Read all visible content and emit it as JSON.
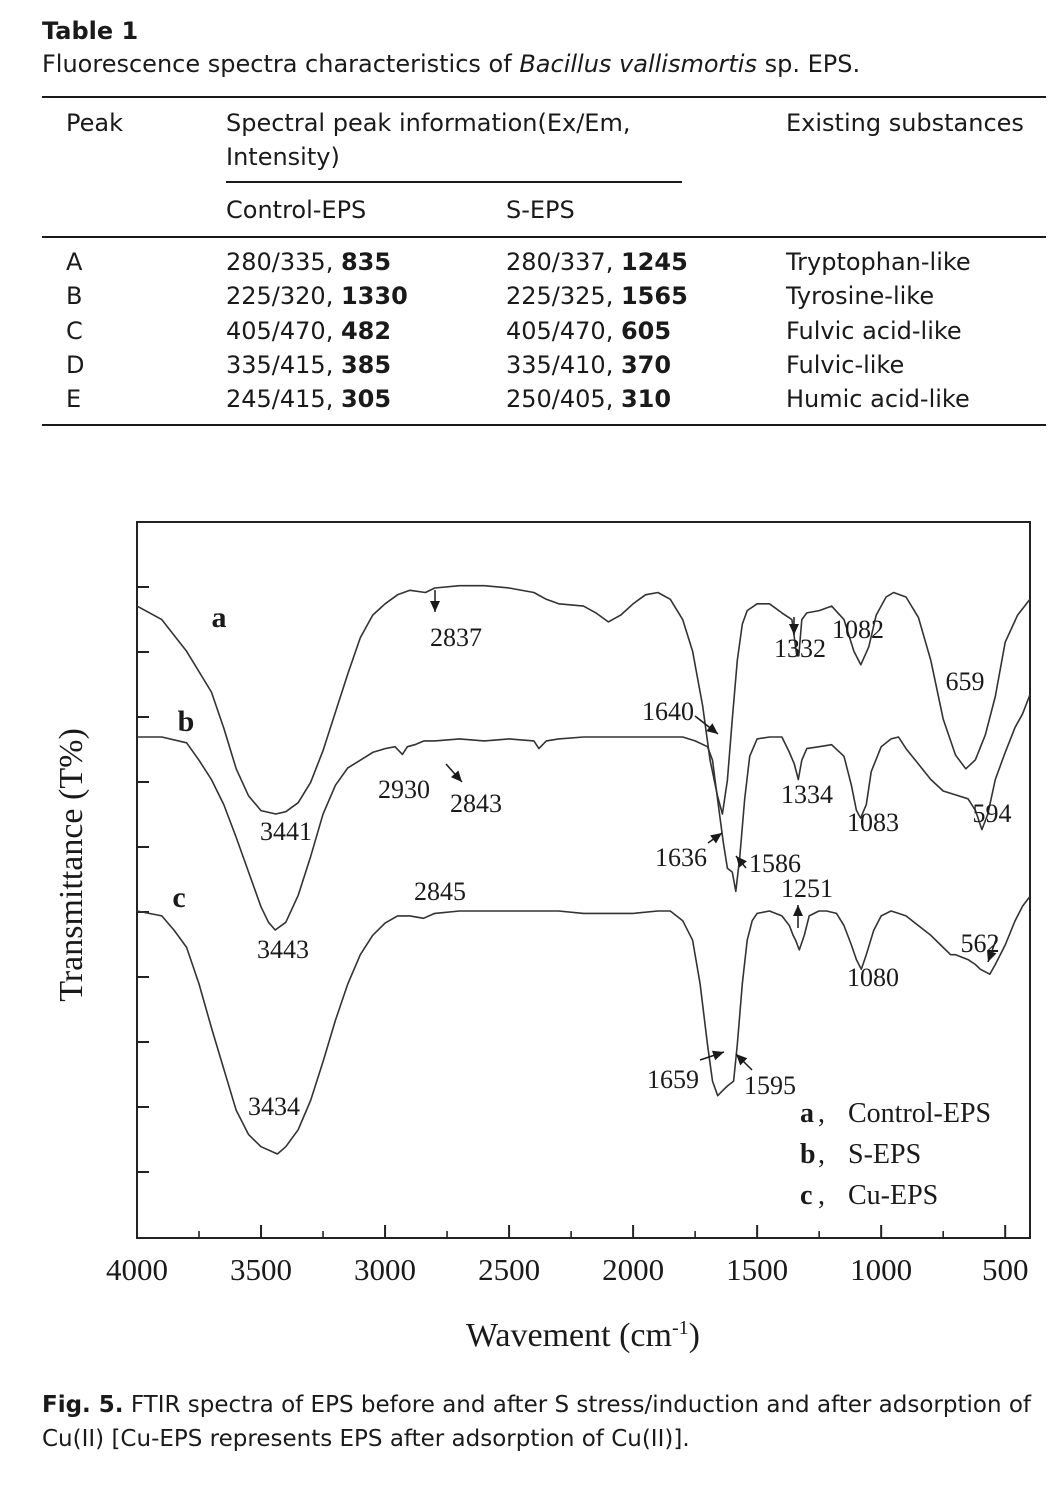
{
  "table": {
    "label": "Table 1",
    "caption_prefix": "Fluorescence spectra characteristics of ",
    "caption_italic": "Bacillus vallismortis",
    "caption_suffix": " sp. EPS.",
    "headers": {
      "peak": "Peak",
      "spectral_line1": "Spectral peak information(Ex/Em,",
      "spectral_line2": "Intensity)",
      "substances": "Existing substances",
      "control": "Control-EPS",
      "s": "S-EPS"
    },
    "rows": [
      {
        "peak": "A",
        "control_pos": "280/335, ",
        "control_int": "835",
        "s_pos": "280/337, ",
        "s_int": "1245",
        "substance": "Tryptophan-like"
      },
      {
        "peak": "B",
        "control_pos": "225/320, ",
        "control_int": "1330",
        "s_pos": "225/325, ",
        "s_int": "1565",
        "substance": "Tyrosine-like"
      },
      {
        "peak": "C",
        "control_pos": "405/470, ",
        "control_int": "482",
        "s_pos": "405/470, ",
        "s_int": "605",
        "substance": "Fulvic acid-like"
      },
      {
        "peak": "D",
        "control_pos": "335/415, ",
        "control_int": "385",
        "s_pos": "335/410, ",
        "s_int": "370",
        "substance": "Fulvic-like"
      },
      {
        "peak": "E",
        "control_pos": "245/415, ",
        "control_int": "305",
        "s_pos": "250/405, ",
        "s_int": "310",
        "substance": "Humic acid-like"
      }
    ]
  },
  "figure": {
    "caption_label": "Fig. 5.",
    "caption_text": " FTIR spectra of EPS before and after S stress/induction and after adsorption of Cu(II) [Cu-EPS represents EPS after adsorption of Cu(II)].",
    "line_color": "#333333"
  },
  "chart_data": {
    "type": "line",
    "xlabel": "Wavement (cm",
    "xlabel_sup": "-1",
    "xlabel_close": ")",
    "ylabel": "Transmittance (T%)",
    "xlim": [
      4000,
      400
    ],
    "xticks": [
      "4000",
      "3500",
      "3000",
      "2500",
      "2000",
      "1500",
      "1000",
      "500"
    ],
    "legend": {
      "position": "bottom-right",
      "entries": [
        {
          "key": "a",
          "sep": ",",
          "name": "Control-EPS"
        },
        {
          "key": "b",
          "sep": ",",
          "name": "S-EPS"
        },
        {
          "key": "c",
          "sep": ",",
          "name": "Cu-EPS"
        }
      ]
    },
    "series": [
      {
        "key": "a",
        "points": [
          [
            4000,
            0.08
          ],
          [
            3900,
            0.14
          ],
          [
            3800,
            0.28
          ],
          [
            3700,
            0.46
          ],
          [
            3650,
            0.62
          ],
          [
            3600,
            0.8
          ],
          [
            3550,
            0.92
          ],
          [
            3500,
            0.985
          ],
          [
            3441,
            1.0
          ],
          [
            3400,
            0.99
          ],
          [
            3350,
            0.95
          ],
          [
            3300,
            0.86
          ],
          [
            3250,
            0.72
          ],
          [
            3200,
            0.55
          ],
          [
            3150,
            0.38
          ],
          [
            3100,
            0.22
          ],
          [
            3050,
            0.12
          ],
          [
            3000,
            0.07
          ],
          [
            2950,
            0.03
          ],
          [
            2900,
            0.01
          ],
          [
            2837,
            0.02
          ],
          [
            2800,
            0.0
          ],
          [
            2700,
            -0.01
          ],
          [
            2600,
            -0.01
          ],
          [
            2500,
            0.0
          ],
          [
            2400,
            0.02
          ],
          [
            2350,
            0.05
          ],
          [
            2300,
            0.07
          ],
          [
            2200,
            0.08
          ],
          [
            2150,
            0.11
          ],
          [
            2100,
            0.15
          ],
          [
            2050,
            0.12
          ],
          [
            2000,
            0.07
          ],
          [
            1950,
            0.03
          ],
          [
            1900,
            0.02
          ],
          [
            1850,
            0.05
          ],
          [
            1800,
            0.14
          ],
          [
            1760,
            0.28
          ],
          [
            1720,
            0.52
          ],
          [
            1690,
            0.76
          ],
          [
            1660,
            0.92
          ],
          [
            1640,
            1.0
          ],
          [
            1620,
            0.85
          ],
          [
            1600,
            0.58
          ],
          [
            1580,
            0.32
          ],
          [
            1560,
            0.16
          ],
          [
            1540,
            0.1
          ],
          [
            1500,
            0.07
          ],
          [
            1450,
            0.07
          ],
          [
            1400,
            0.11
          ],
          [
            1360,
            0.14
          ],
          [
            1340,
            0.3
          ],
          [
            1332,
            0.3
          ],
          [
            1320,
            0.14
          ],
          [
            1300,
            0.11
          ],
          [
            1250,
            0.1
          ],
          [
            1200,
            0.08
          ],
          [
            1150,
            0.14
          ],
          [
            1110,
            0.28
          ],
          [
            1082,
            0.34
          ],
          [
            1050,
            0.26
          ],
          [
            1020,
            0.12
          ],
          [
            980,
            0.04
          ],
          [
            950,
            0.02
          ],
          [
            900,
            0.04
          ],
          [
            850,
            0.13
          ],
          [
            800,
            0.32
          ],
          [
            750,
            0.58
          ],
          [
            700,
            0.74
          ],
          [
            659,
            0.8
          ],
          [
            620,
            0.76
          ],
          [
            580,
            0.65
          ],
          [
            540,
            0.48
          ],
          [
            500,
            0.24
          ],
          [
            450,
            0.12
          ],
          [
            400,
            0.05
          ]
        ]
      },
      {
        "key": "b",
        "points": [
          [
            4000,
            0.0
          ],
          [
            3900,
            0.0
          ],
          [
            3800,
            0.03
          ],
          [
            3750,
            0.12
          ],
          [
            3700,
            0.22
          ],
          [
            3650,
            0.35
          ],
          [
            3600,
            0.52
          ],
          [
            3550,
            0.7
          ],
          [
            3500,
            0.88
          ],
          [
            3470,
            0.96
          ],
          [
            3443,
            1.0
          ],
          [
            3400,
            0.96
          ],
          [
            3350,
            0.82
          ],
          [
            3300,
            0.62
          ],
          [
            3250,
            0.4
          ],
          [
            3200,
            0.25
          ],
          [
            3150,
            0.16
          ],
          [
            3100,
            0.12
          ],
          [
            3050,
            0.08
          ],
          [
            3000,
            0.06
          ],
          [
            2960,
            0.05
          ],
          [
            2930,
            0.09
          ],
          [
            2910,
            0.05
          ],
          [
            2880,
            0.04
          ],
          [
            2843,
            0.02
          ],
          [
            2800,
            0.02
          ],
          [
            2700,
            0.01
          ],
          [
            2600,
            0.02
          ],
          [
            2500,
            0.01
          ],
          [
            2400,
            0.02
          ],
          [
            2380,
            0.06
          ],
          [
            2350,
            0.02
          ],
          [
            2300,
            0.01
          ],
          [
            2200,
            0.0
          ],
          [
            2100,
            0.0
          ],
          [
            2000,
            0.0
          ],
          [
            1900,
            0.0
          ],
          [
            1800,
            0.0
          ],
          [
            1750,
            0.02
          ],
          [
            1700,
            0.05
          ],
          [
            1680,
            0.12
          ],
          [
            1660,
            0.32
          ],
          [
            1636,
            0.55
          ],
          [
            1620,
            0.68
          ],
          [
            1600,
            0.7
          ],
          [
            1586,
            0.8
          ],
          [
            1570,
            0.62
          ],
          [
            1550,
            0.32
          ],
          [
            1530,
            0.1
          ],
          [
            1500,
            0.01
          ],
          [
            1450,
            0.0
          ],
          [
            1400,
            0.0
          ],
          [
            1370,
            0.08
          ],
          [
            1350,
            0.14
          ],
          [
            1334,
            0.22
          ],
          [
            1320,
            0.12
          ],
          [
            1300,
            0.06
          ],
          [
            1250,
            0.05
          ],
          [
            1200,
            0.04
          ],
          [
            1150,
            0.1
          ],
          [
            1120,
            0.25
          ],
          [
            1100,
            0.38
          ],
          [
            1083,
            0.42
          ],
          [
            1060,
            0.35
          ],
          [
            1040,
            0.18
          ],
          [
            1000,
            0.05
          ],
          [
            960,
            0.01
          ],
          [
            930,
            0.0
          ],
          [
            900,
            0.06
          ],
          [
            850,
            0.14
          ],
          [
            800,
            0.22
          ],
          [
            750,
            0.28
          ],
          [
            700,
            0.3
          ],
          [
            650,
            0.32
          ],
          [
            620,
            0.38
          ],
          [
            594,
            0.48
          ],
          [
            570,
            0.4
          ],
          [
            540,
            0.22
          ],
          [
            500,
            0.08
          ],
          [
            460,
            -0.05
          ],
          [
            430,
            -0.12
          ],
          [
            400,
            -0.22
          ]
        ]
      },
      {
        "key": "c",
        "points": [
          [
            4000,
            0.0
          ],
          [
            3900,
            0.02
          ],
          [
            3850,
            0.08
          ],
          [
            3800,
            0.15
          ],
          [
            3750,
            0.3
          ],
          [
            3700,
            0.48
          ],
          [
            3650,
            0.65
          ],
          [
            3600,
            0.82
          ],
          [
            3550,
            0.92
          ],
          [
            3500,
            0.97
          ],
          [
            3434,
            1.0
          ],
          [
            3400,
            0.97
          ],
          [
            3350,
            0.9
          ],
          [
            3300,
            0.78
          ],
          [
            3250,
            0.62
          ],
          [
            3200,
            0.45
          ],
          [
            3150,
            0.3
          ],
          [
            3100,
            0.18
          ],
          [
            3050,
            0.1
          ],
          [
            3000,
            0.05
          ],
          [
            2950,
            0.02
          ],
          [
            2900,
            0.02
          ],
          [
            2845,
            0.03
          ],
          [
            2800,
            0.01
          ],
          [
            2700,
            0.0
          ],
          [
            2600,
            0.0
          ],
          [
            2500,
            0.0
          ],
          [
            2400,
            0.0
          ],
          [
            2300,
            0.0
          ],
          [
            2200,
            0.01
          ],
          [
            2100,
            0.01
          ],
          [
            2000,
            0.01
          ],
          [
            1900,
            0.0
          ],
          [
            1850,
            0.0
          ],
          [
            1800,
            0.04
          ],
          [
            1760,
            0.12
          ],
          [
            1730,
            0.3
          ],
          [
            1700,
            0.55
          ],
          [
            1680,
            0.7
          ],
          [
            1659,
            0.76
          ],
          [
            1640,
            0.74
          ],
          [
            1620,
            0.72
          ],
          [
            1595,
            0.7
          ],
          [
            1580,
            0.55
          ],
          [
            1560,
            0.3
          ],
          [
            1540,
            0.12
          ],
          [
            1520,
            0.04
          ],
          [
            1500,
            0.01
          ],
          [
            1450,
            0.0
          ],
          [
            1400,
            0.02
          ],
          [
            1370,
            0.06
          ],
          [
            1355,
            0.1
          ],
          [
            1345,
            0.12
          ],
          [
            1330,
            0.16
          ],
          [
            1310,
            0.1
          ],
          [
            1290,
            0.02
          ],
          [
            1251,
            0.0
          ],
          [
            1220,
            0.0
          ],
          [
            1180,
            0.01
          ],
          [
            1150,
            0.06
          ],
          [
            1120,
            0.14
          ],
          [
            1100,
            0.2
          ],
          [
            1080,
            0.24
          ],
          [
            1060,
            0.18
          ],
          [
            1030,
            0.08
          ],
          [
            1000,
            0.02
          ],
          [
            960,
            0.0
          ],
          [
            930,
            0.01
          ],
          [
            900,
            0.02
          ],
          [
            850,
            0.06
          ],
          [
            800,
            0.1
          ],
          [
            760,
            0.14
          ],
          [
            720,
            0.18
          ],
          [
            700,
            0.18
          ],
          [
            650,
            0.2
          ],
          [
            620,
            0.22
          ],
          [
            600,
            0.24
          ],
          [
            562,
            0.26
          ],
          [
            540,
            0.22
          ],
          [
            500,
            0.14
          ],
          [
            460,
            0.04
          ],
          [
            430,
            -0.02
          ],
          [
            400,
            -0.06
          ]
        ]
      }
    ],
    "curve_labels": [
      {
        "key": "a",
        "text": "a"
      },
      {
        "key": "b",
        "text": "b"
      },
      {
        "key": "c",
        "text": "c"
      }
    ],
    "annotations": [
      {
        "series": "a",
        "text": "3441"
      },
      {
        "series": "a",
        "text": "2837"
      },
      {
        "series": "a",
        "text": "1640"
      },
      {
        "series": "a",
        "text": "1332"
      },
      {
        "series": "a",
        "text": "1082"
      },
      {
        "series": "a",
        "text": "659"
      },
      {
        "series": "b",
        "text": "3443"
      },
      {
        "series": "b",
        "text": "2930"
      },
      {
        "series": "b",
        "text": "2843"
      },
      {
        "series": "b",
        "text": "1636"
      },
      {
        "series": "b",
        "text": "1586"
      },
      {
        "series": "b",
        "text": "1334"
      },
      {
        "series": "b",
        "text": "1083"
      },
      {
        "series": "b",
        "text": "594"
      },
      {
        "series": "c",
        "text": "3434"
      },
      {
        "series": "c",
        "text": "2845"
      },
      {
        "series": "c",
        "text": "1659"
      },
      {
        "series": "c",
        "text": "1595"
      },
      {
        "series": "c",
        "text": "1251"
      },
      {
        "series": "c",
        "text": "1080"
      },
      {
        "series": "c",
        "text": "562"
      }
    ]
  }
}
